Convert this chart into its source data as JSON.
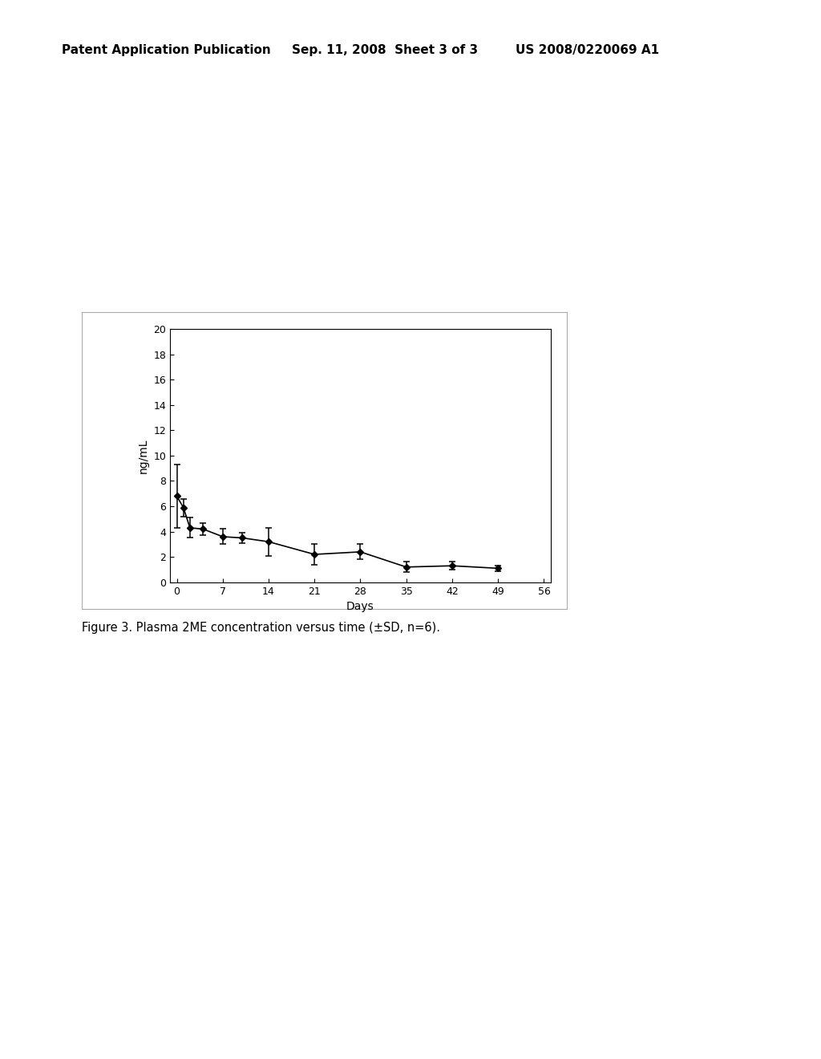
{
  "x": [
    0,
    1,
    2,
    4,
    7,
    10,
    14,
    21,
    28,
    35,
    42,
    49
  ],
  "y": [
    6.8,
    5.9,
    4.3,
    4.2,
    3.6,
    3.5,
    3.2,
    2.2,
    2.4,
    1.2,
    1.3,
    1.1
  ],
  "yerr": [
    2.5,
    0.7,
    0.8,
    0.5,
    0.6,
    0.4,
    1.1,
    0.8,
    0.6,
    0.4,
    0.3,
    0.2
  ],
  "xlabel": "Days",
  "ylabel": "ng/mL",
  "xlim": [
    -1,
    57
  ],
  "ylim": [
    0,
    20
  ],
  "xticks": [
    0,
    7,
    14,
    21,
    28,
    35,
    42,
    49,
    56
  ],
  "yticks": [
    0,
    2,
    4,
    6,
    8,
    10,
    12,
    14,
    16,
    18,
    20
  ],
  "caption": "Figure 3. Plasma 2ME concentration versus time (±SD, n=6).",
  "header_left": "Patent Application Publication",
  "header_center": "Sep. 11, 2008  Sheet 3 of 3",
  "header_right": "US 2008/0220069 A1",
  "line_color": "#000000",
  "marker_color": "#000000",
  "background_color": "#ffffff",
  "figure_bg": "#ffffff",
  "outer_box_color": "#aaaaaa",
  "header_fontsize": 11,
  "axis_fontsize": 10,
  "caption_fontsize": 10.5
}
